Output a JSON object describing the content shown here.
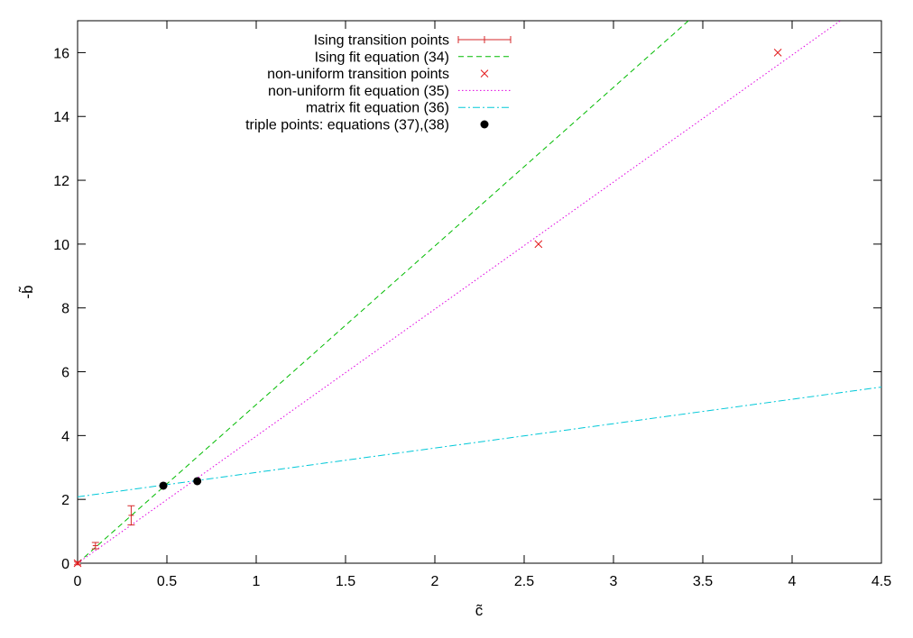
{
  "chart_data": {
    "type": "scatter",
    "title": "",
    "xlabel": "c̃",
    "ylabel": "-b̃",
    "xlim": [
      0,
      4.5
    ],
    "ylim": [
      0,
      17
    ],
    "xticks": [
      0,
      0.5,
      1,
      1.5,
      2,
      2.5,
      3,
      3.5,
      4,
      4.5
    ],
    "yticks": [
      0,
      2,
      4,
      6,
      8,
      10,
      12,
      14,
      16
    ],
    "xtick_labels": [
      "0",
      "0.5",
      "1",
      "1.5",
      "2",
      "2.5",
      "3",
      "3.5",
      "4",
      "4.5"
    ],
    "ytick_labels": [
      "0",
      "2",
      "4",
      "6",
      "8",
      "10",
      "12",
      "14",
      "16"
    ],
    "grid": false,
    "legend_position": "top-center",
    "series": [
      {
        "name": "Ising transition points",
        "kind": "errorbar",
        "color": "#d62728",
        "x": [
          0,
          0.1,
          0.3
        ],
        "y": [
          0,
          0.55,
          1.5
        ],
        "yerr": [
          0.05,
          0.1,
          0.3
        ]
      },
      {
        "name": "Ising fit equation (34)",
        "kind": "line",
        "style": "dashed",
        "color": "#00bb00",
        "x": [
          0,
          3.42
        ],
        "y": [
          0,
          17
        ]
      },
      {
        "name": "non-uniform transition points",
        "kind": "points",
        "marker": "x",
        "color": "#e31a1c",
        "x": [
          0,
          2.58,
          3.92
        ],
        "y": [
          0,
          10,
          16
        ]
      },
      {
        "name": "non-uniform fit equation (35)",
        "kind": "line",
        "style": "dotted",
        "color": "#e000e0",
        "x": [
          0,
          4.27
        ],
        "y": [
          0,
          17
        ]
      },
      {
        "name": "matrix fit equation (36)",
        "kind": "line",
        "style": "dashdot",
        "color": "#00c8d8",
        "x": [
          0,
          4.5
        ],
        "y": [
          2.08,
          5.52
        ]
      },
      {
        "name": "triple points: equations (37),(38)",
        "kind": "points",
        "marker": "dot",
        "color": "#000000",
        "x": [
          0.48,
          0.67
        ],
        "y": [
          2.43,
          2.57
        ]
      }
    ]
  }
}
